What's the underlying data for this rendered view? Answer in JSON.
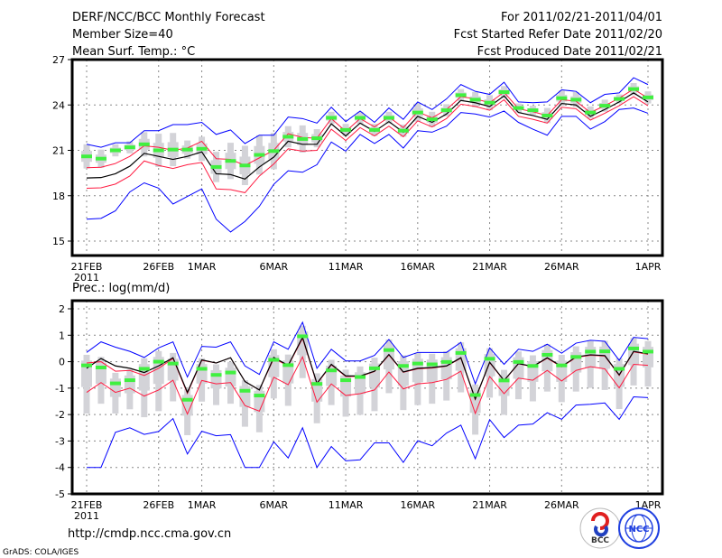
{
  "header": {
    "title": "DERF/NCC/BCC Monthly Forecast",
    "member_size": "Member Size=40",
    "variable": "Mean Surf. Temp.: °C",
    "period": "For 2011/02/21-2011/04/01",
    "started": "Fcst Started Refer Date 2011/02/20",
    "produced": "Fcst Produced Date 2011/02/21"
  },
  "footer": {
    "url": "http://cmdp.ncc.cma.gov.cn",
    "grads": "GrADS: COLA/IGES",
    "logo_bcc": "BCC",
    "logo_ncc": "NCC"
  },
  "colors": {
    "mean": "#000000",
    "spread": "#ff1a40",
    "envelope": "#0000ff",
    "median": "#40f040",
    "box": "#d3d3d8"
  },
  "chart_data": [
    {
      "type": "line",
      "title": "Mean Surf. Temp.: °C",
      "x_start": "2011-02-21",
      "n_days": 40,
      "xticks": [
        {
          "day": 0,
          "label": "21FEB",
          "sub": "2011"
        },
        {
          "day": 5,
          "label": "26FEB"
        },
        {
          "day": 8,
          "label": "1MAR"
        },
        {
          "day": 13,
          "label": "6MAR"
        },
        {
          "day": 18,
          "label": "11MAR"
        },
        {
          "day": 23,
          "label": "16MAR"
        },
        {
          "day": 28,
          "label": "21MAR"
        },
        {
          "day": 33,
          "label": "26MAR"
        },
        {
          "day": 39,
          "label": "1APR"
        }
      ],
      "yticks": [
        "15",
        "18",
        "21",
        "24",
        "27"
      ],
      "ylim": [
        15,
        27
      ],
      "grid": true,
      "series": [
        {
          "name": "ensemble mean",
          "values": [
            19.17,
            19.2,
            19.45,
            19.95,
            20.8,
            20.6,
            20.4,
            20.6,
            20.9,
            19.45,
            19.4,
            19.1,
            19.9,
            20.55,
            21.6,
            21.4,
            21.4,
            22.75,
            21.95,
            22.8,
            22.25,
            22.9,
            22.2,
            23.25,
            22.85,
            23.4,
            24.3,
            24.15,
            23.9,
            24.6,
            23.5,
            23.3,
            23.05,
            24.1,
            24.0,
            23.25,
            23.7,
            24.2,
            24.8,
            24.2
          ]
        },
        {
          "name": "spread",
          "values": [
            0.68,
            0.68,
            0.68,
            0.65,
            0.5,
            0.6,
            0.6,
            0.55,
            0.7,
            1.0,
            1.0,
            0.9,
            0.6,
            0.45,
            0.5,
            0.45,
            0.4,
            0.35,
            0.3,
            0.3,
            0.3,
            0.3,
            0.3,
            0.3,
            0.3,
            0.3,
            0.25,
            0.25,
            0.25,
            0.25,
            0.25,
            0.25,
            0.25,
            0.25,
            0.25,
            0.25,
            0.25,
            0.25,
            0.25,
            0.25
          ]
        },
        {
          "name": "max",
          "values": [
            21.4,
            21.2,
            21.5,
            21.5,
            22.3,
            22.3,
            22.7,
            22.7,
            22.85,
            22.05,
            22.35,
            21.45,
            22.0,
            22.0,
            23.2,
            23.1,
            22.8,
            23.85,
            22.9,
            23.6,
            22.85,
            23.8,
            23.05,
            24.2,
            23.7,
            24.4,
            25.35,
            24.9,
            24.7,
            25.5,
            24.2,
            24.15,
            24.2,
            25.0,
            24.9,
            24.15,
            24.7,
            24.8,
            25.8,
            25.35
          ]
        },
        {
          "name": "min",
          "values": [
            16.45,
            16.5,
            17.0,
            18.25,
            18.85,
            18.5,
            17.45,
            17.95,
            18.45,
            16.45,
            15.6,
            16.3,
            17.3,
            18.75,
            19.65,
            19.55,
            20.05,
            21.55,
            20.95,
            22.05,
            21.45,
            22.05,
            21.15,
            22.3,
            22.2,
            22.6,
            23.5,
            23.4,
            23.2,
            23.6,
            22.85,
            22.4,
            22.0,
            23.25,
            23.25,
            22.4,
            22.9,
            23.7,
            23.8,
            23.45
          ]
        },
        {
          "name": "median",
          "values": [
            20.6,
            20.45,
            21.0,
            21.2,
            21.4,
            21.0,
            21.05,
            21.05,
            21.1,
            19.9,
            20.3,
            20.0,
            20.7,
            20.95,
            21.9,
            21.75,
            21.8,
            23.15,
            22.35,
            23.15,
            22.35,
            23.15,
            22.3,
            23.5,
            23.05,
            23.65,
            24.65,
            24.35,
            24.15,
            24.85,
            23.8,
            23.65,
            23.3,
            24.45,
            24.35,
            23.5,
            23.95,
            24.4,
            25.05,
            24.5
          ]
        },
        {
          "name": "box_halfrange",
          "values": [
            0.8,
            0.6,
            0.4,
            0.4,
            0.8,
            1.1,
            1.1,
            0.6,
            0.8,
            1.0,
            1.2,
            1.3,
            1.3,
            1.2,
            0.7,
            0.9,
            0.6,
            0.4,
            0.4,
            0.4,
            0.4,
            0.4,
            0.4,
            0.6,
            0.5,
            0.4,
            0.4,
            0.5,
            0.5,
            0.4,
            0.3,
            0.3,
            0.5,
            0.5,
            0.5,
            0.4,
            0.4,
            0.3,
            0.4,
            0.4
          ]
        }
      ]
    },
    {
      "type": "line",
      "title": "Prec.: log(mm/d)",
      "x_start": "2011-02-21",
      "n_days": 40,
      "xticks": [
        {
          "day": 0,
          "label": "21FEB",
          "sub": "2011"
        },
        {
          "day": 5,
          "label": "26FEB"
        },
        {
          "day": 8,
          "label": "1MAR"
        },
        {
          "day": 13,
          "label": "6MAR"
        },
        {
          "day": 18,
          "label": "11MAR"
        },
        {
          "day": 23,
          "label": "16MAR"
        },
        {
          "day": 28,
          "label": "21MAR"
        },
        {
          "day": 33,
          "label": "26MAR"
        },
        {
          "day": 39,
          "label": "1APR"
        }
      ],
      "yticks": [
        "-5",
        "-4",
        "-3",
        "-2",
        "-1",
        "0",
        "1",
        "2"
      ],
      "ylim": [
        -5,
        2
      ],
      "grid": true,
      "series": [
        {
          "name": "ensemble mean",
          "values": [
            -0.25,
            0.12,
            -0.16,
            -0.25,
            -0.41,
            -0.16,
            0.15,
            -1.16,
            0.07,
            -0.05,
            0.15,
            -0.75,
            -1.07,
            0.16,
            -0.14,
            0.92,
            -0.82,
            -0.1,
            -0.54,
            -0.54,
            -0.36,
            0.27,
            -0.39,
            -0.25,
            -0.22,
            -0.16,
            0.15,
            -1.41,
            -0.02,
            -0.71,
            -0.07,
            -0.18,
            0.15,
            -0.18,
            0.18,
            0.26,
            0.23,
            -0.5,
            0.39,
            0.3
          ]
        },
        {
          "name": "spread upper",
          "values": [
            -0.05,
            0.0,
            -0.36,
            -0.33,
            -0.52,
            -0.25,
            0.12,
            -1.2,
            0.05,
            -0.05,
            0.15,
            -0.75,
            -1.07,
            0.12,
            -0.16,
            0.88,
            -0.84,
            -0.12,
            -0.56,
            -0.56,
            -0.37,
            0.25,
            -0.4,
            -0.27,
            -0.24,
            -0.17,
            0.13,
            -1.43,
            -0.04,
            -0.72,
            -0.08,
            -0.19,
            0.13,
            -0.2,
            0.16,
            0.24,
            0.21,
            -0.52,
            0.37,
            0.28
          ]
        },
        {
          "name": "spread lower",
          "values": [
            -1.16,
            -0.79,
            -1.16,
            -1.0,
            -1.3,
            -1.07,
            -0.7,
            -1.98,
            -0.71,
            -0.84,
            -0.79,
            -1.66,
            -1.87,
            -0.59,
            -0.87,
            0.18,
            -1.53,
            -0.84,
            -1.28,
            -1.21,
            -1.07,
            -0.39,
            -1.03,
            -0.84,
            -0.79,
            -0.67,
            -0.36,
            -1.96,
            -0.56,
            -1.21,
            -0.62,
            -0.7,
            -0.33,
            -0.73,
            -0.33,
            -0.19,
            -0.27,
            -0.99,
            -0.1,
            -0.14
          ]
        },
        {
          "name": "max",
          "values": [
            0.35,
            0.75,
            0.55,
            0.39,
            0.16,
            0.52,
            0.75,
            -0.58,
            0.58,
            0.55,
            0.75,
            -0.16,
            -0.48,
            0.75,
            0.47,
            1.49,
            -0.25,
            0.47,
            0.03,
            0.03,
            0.24,
            0.84,
            0.16,
            0.35,
            0.35,
            0.35,
            0.73,
            -0.84,
            0.52,
            -0.1,
            0.47,
            0.39,
            0.66,
            0.32,
            0.7,
            0.81,
            0.77,
            0.05,
            0.92,
            0.87
          ]
        },
        {
          "name": "min",
          "values": [
            -4.0,
            -4.0,
            -2.67,
            -2.5,
            -2.75,
            -2.64,
            -2.15,
            -3.49,
            -2.63,
            -2.8,
            -2.76,
            -4.0,
            -4.0,
            -3.03,
            -3.64,
            -2.5,
            -4.0,
            -3.21,
            -3.75,
            -3.71,
            -3.07,
            -3.07,
            -3.81,
            -2.99,
            -3.18,
            -2.7,
            -2.4,
            -3.67,
            -2.19,
            -2.87,
            -2.4,
            -2.36,
            -1.93,
            -2.18,
            -1.64,
            -1.61,
            -1.56,
            -2.18,
            -1.33,
            -1.36
          ]
        },
        {
          "name": "median",
          "values": [
            -0.14,
            -0.22,
            -0.82,
            -0.7,
            -0.27,
            0.0,
            -0.07,
            -1.44,
            -0.27,
            -0.5,
            -0.41,
            -1.1,
            -1.28,
            0.07,
            -0.13,
            0.96,
            -0.84,
            -0.33,
            -0.7,
            -0.58,
            -0.25,
            0.44,
            -0.16,
            -0.07,
            -0.1,
            -0.01,
            0.33,
            -1.26,
            0.11,
            -0.71,
            -0.01,
            -0.16,
            0.26,
            -0.14,
            0.18,
            0.38,
            0.39,
            -0.27,
            0.5,
            0.38
          ]
        }
      ]
    }
  ]
}
